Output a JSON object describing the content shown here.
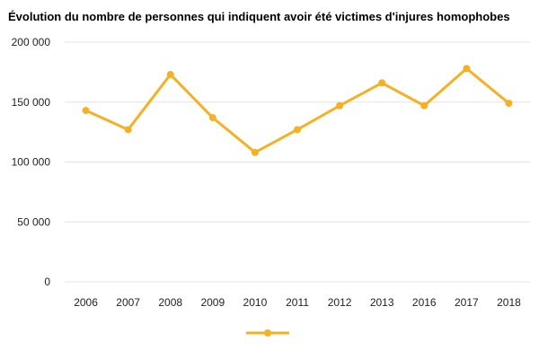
{
  "chart_data": {
    "type": "line",
    "title": "Évolution du nombre de personnes qui indiquent avoir été victimes d'injures homophobes",
    "xlabel": "",
    "ylabel": "",
    "categories": [
      "2006",
      "2007",
      "2008",
      "2009",
      "2010",
      "2011",
      "2012",
      "2013",
      "2016",
      "2017",
      "2018"
    ],
    "series": [
      {
        "values": [
          143000,
          127000,
          173000,
          137000,
          108000,
          127000,
          147000,
          166000,
          147000,
          178000,
          149000
        ],
        "color": "#f6b024"
      }
    ],
    "ylim": [
      0,
      200000
    ],
    "yticks": [
      0,
      50000,
      100000,
      150000,
      200000
    ],
    "ytick_labels": [
      "0",
      "50 000",
      "100 000",
      "150 000",
      "200 000"
    ],
    "grid": true,
    "legend": "bottom-center"
  }
}
